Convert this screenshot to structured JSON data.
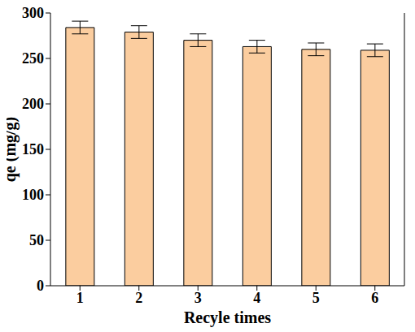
{
  "chart_data": {
    "type": "bar",
    "x_label": "Recyle times",
    "y_label": "qe (mg/g)",
    "categories": [
      "1",
      "2",
      "3",
      "4",
      "5",
      "6"
    ],
    "values": [
      284,
      279,
      270,
      263,
      260,
      259
    ],
    "error": [
      7,
      7,
      7,
      7,
      7,
      7
    ],
    "color": "#fbcd9f",
    "ylim": [
      0,
      300
    ],
    "yticks": [
      0,
      50,
      100,
      150,
      200,
      250,
      300
    ],
    "grid": false
  }
}
